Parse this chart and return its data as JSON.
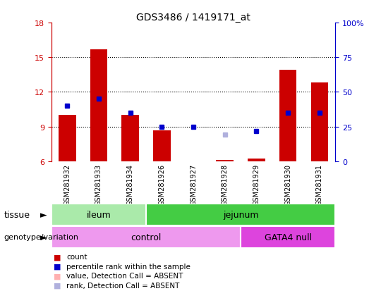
{
  "title": "GDS3486 / 1419171_at",
  "samples": [
    "GSM281932",
    "GSM281933",
    "GSM281934",
    "GSM281926",
    "GSM281927",
    "GSM281928",
    "GSM281929",
    "GSM281930",
    "GSM281931"
  ],
  "bar_values": [
    10.0,
    15.7,
    10.0,
    8.7,
    6.0,
    6.1,
    6.2,
    13.9,
    12.8
  ],
  "bar_absent": [
    false,
    false,
    false,
    false,
    true,
    false,
    false,
    false,
    false
  ],
  "percentile_values": [
    10.8,
    11.4,
    10.2,
    9.0,
    9.0,
    8.3,
    8.6,
    10.2,
    10.2
  ],
  "percentile_absent": [
    false,
    false,
    false,
    false,
    false,
    true,
    false,
    false,
    false
  ],
  "bar_bottom": 6.0,
  "ymin": 6.0,
  "ymax": 18.0,
  "yticks": [
    6,
    9,
    12,
    15,
    18
  ],
  "y2ticks_labels": [
    "0",
    "25",
    "50",
    "75",
    "100%"
  ],
  "bar_color": "#cc0000",
  "bar_absent_color": "#ffb0b0",
  "percentile_color": "#0000cc",
  "percentile_absent_color": "#b0b0dd",
  "bar_width": 0.55,
  "tissue_groups": [
    {
      "label": "ileum",
      "start": 0,
      "end": 3,
      "color": "#aaeaaa"
    },
    {
      "label": "jejunum",
      "start": 3,
      "end": 9,
      "color": "#44cc44"
    }
  ],
  "genotype_groups": [
    {
      "label": "control",
      "start": 0,
      "end": 6,
      "color": "#ee99ee"
    },
    {
      "label": "GATA4 null",
      "start": 6,
      "end": 9,
      "color": "#dd44dd"
    }
  ],
  "legend_items": [
    {
      "label": "count",
      "color": "#cc0000"
    },
    {
      "label": "percentile rank within the sample",
      "color": "#0000cc"
    },
    {
      "label": "value, Detection Call = ABSENT",
      "color": "#ffb0b0"
    },
    {
      "label": "rank, Detection Call = ABSENT",
      "color": "#b0b0dd"
    }
  ],
  "tissue_label": "tissue",
  "genotype_label": "genotype/variation",
  "bg_color": "#ffffff",
  "sample_box_color": "#c8c8c8",
  "tick_color_left": "#cc0000",
  "tick_color_right": "#0000cc"
}
